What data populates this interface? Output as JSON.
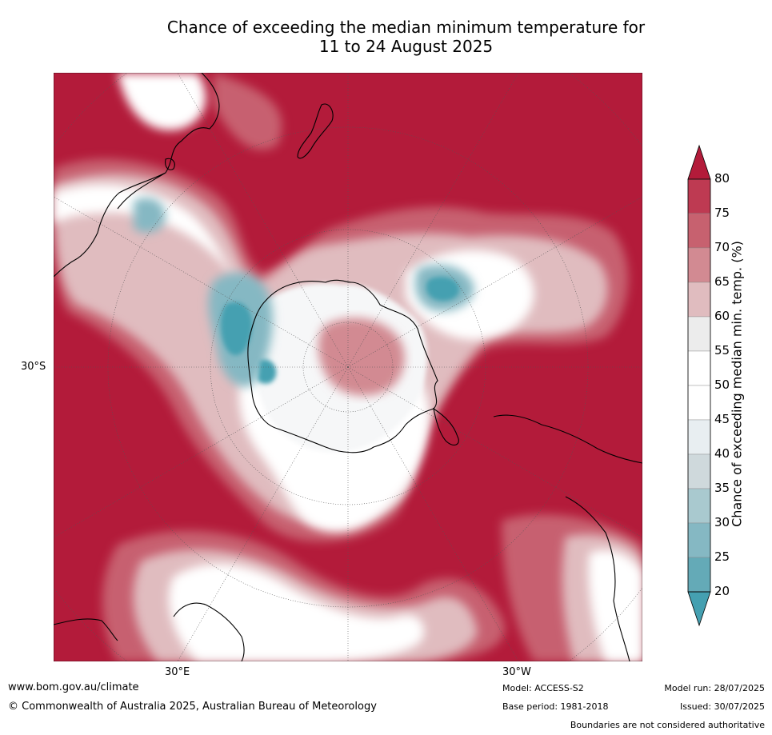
{
  "title_line1": "Chance of exceeding the median minimum temperature for",
  "title_line2": "11 to 24 August 2025",
  "map": {
    "projection": "south-polar-stereographic",
    "lat_label": "30°S",
    "lon_labels": [
      "30°E",
      "30°W"
    ]
  },
  "colorbar": {
    "label": "Chance of exceeding median min. temp. (%)",
    "ticks": [
      "80",
      "75",
      "70",
      "65",
      "60",
      "55",
      "50",
      "45",
      "40",
      "35",
      "30",
      "25",
      "20"
    ],
    "colors": [
      "#b31b3a",
      "#be3a52",
      "#c7616f",
      "#d28a92",
      "#e0bcbf",
      "#ececec",
      "#ffffff",
      "#ffffff",
      "#e8eef1",
      "#cfd9dc",
      "#a9c9cf",
      "#85b8c3",
      "#64aab7",
      "#45a0b1"
    ]
  },
  "footer": {
    "website": "www.bom.gov.au/climate",
    "copyright": "© Commonwealth of Australia 2025, Australian Bureau of Meteorology",
    "model": "Model: ACCESS-S2",
    "base_period": "Base period: 1981-2018",
    "model_run": "Model run: 28/07/2025",
    "issued": "Issued: 30/07/2025",
    "disclaimer": "Boundaries are not considered authoritative"
  }
}
